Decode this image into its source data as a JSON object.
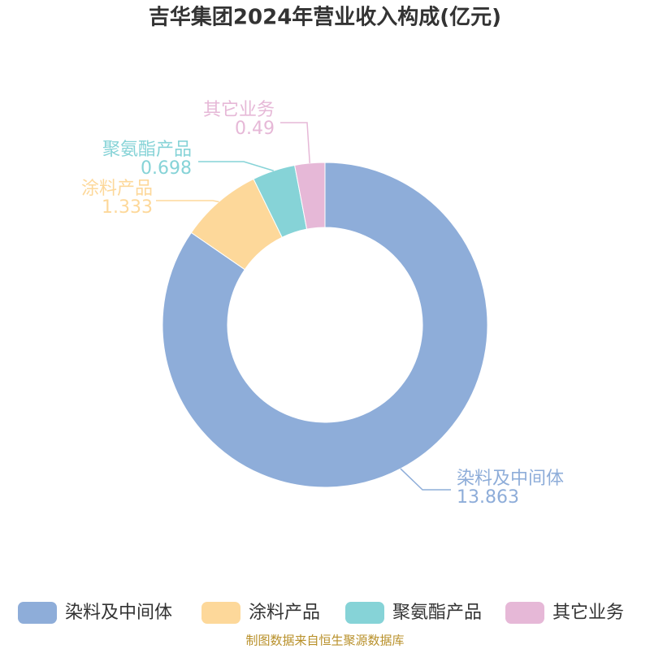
{
  "chart_data": {
    "type": "donut",
    "title": "吉华集团2024年营业收入构成(亿元)",
    "categories": [
      "染料及中间体",
      "涂料产品",
      "聚氨酯产品",
      "其它业务"
    ],
    "values": [
      13.863,
      1.333,
      0.698,
      0.49
    ],
    "colors": [
      "#8eadd9",
      "#fdd89a",
      "#86d3d7",
      "#e6b8d7"
    ],
    "legend": "bottom",
    "source": "制图数据来自恒生聚源数据库"
  }
}
